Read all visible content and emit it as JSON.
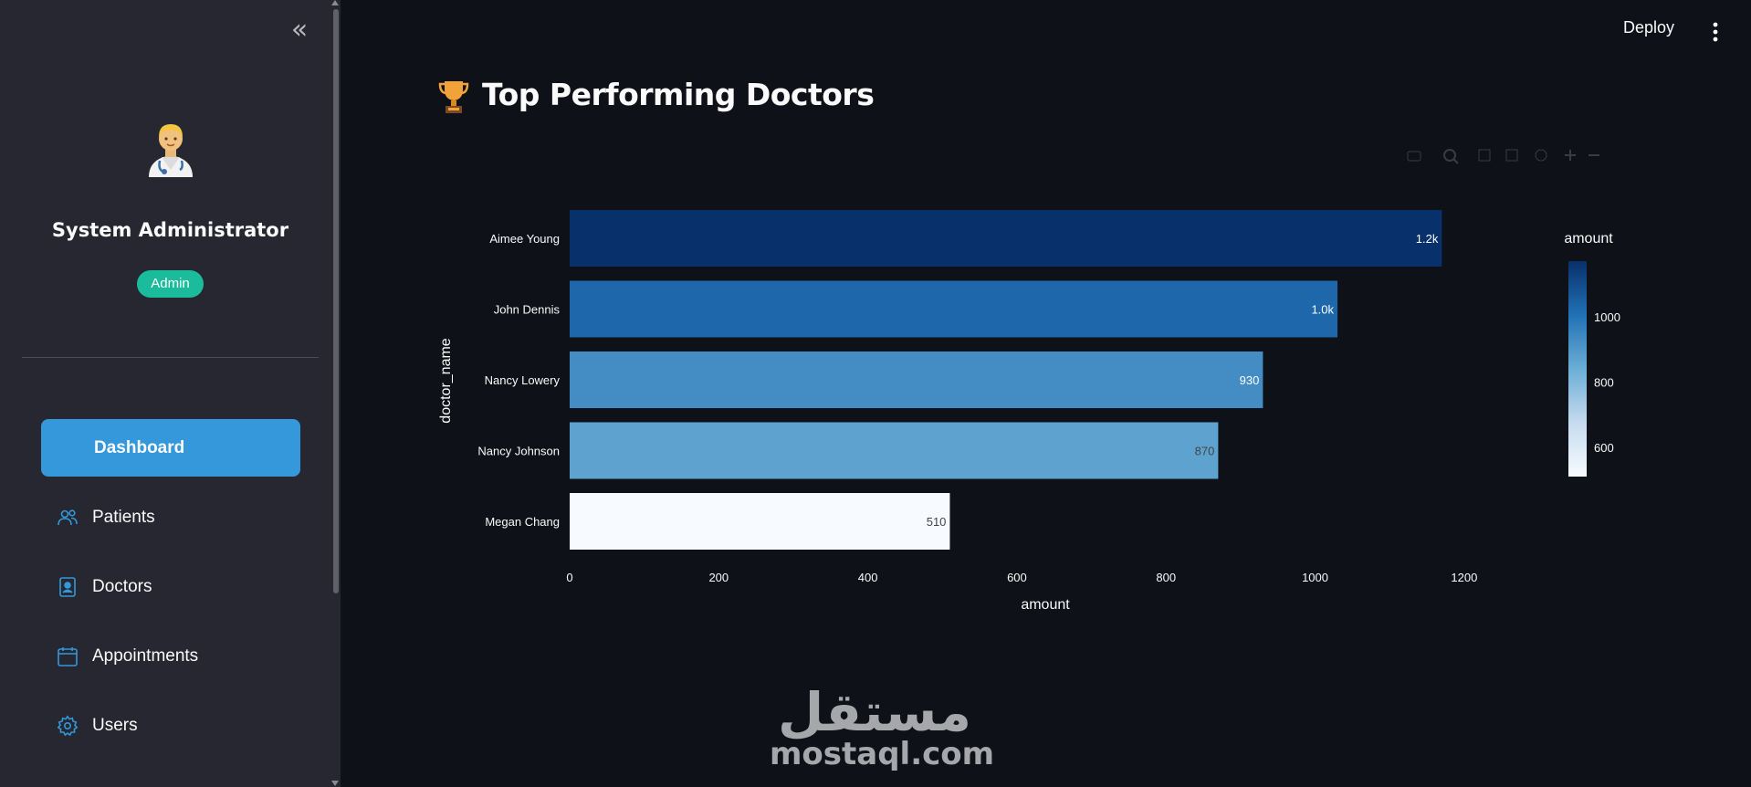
{
  "sidebar": {
    "collapse_icon": "double-chevron-left-icon",
    "avatar_icon": "doctor-avatar-icon",
    "user_name": "System Administrator",
    "role_badge": "Admin",
    "items": [
      {
        "label": "Dashboard",
        "icon": "none",
        "active": true
      },
      {
        "label": "Patients",
        "icon": "users-icon",
        "active": false
      },
      {
        "label": "Doctors",
        "icon": "badge-icon",
        "active": false
      },
      {
        "label": "Appointments",
        "icon": "calendar-icon",
        "active": false
      },
      {
        "label": "Users",
        "icon": "gear-icon",
        "active": false
      }
    ]
  },
  "header": {
    "deploy_label": "Deploy",
    "menu_icon": "kebab-menu-icon"
  },
  "main": {
    "title": "Top Performing Doctors",
    "title_icon": "trophy-icon"
  },
  "chart_data": {
    "type": "bar",
    "orientation": "horizontal",
    "categories": [
      "Aimee Young",
      "John Dennis",
      "Nancy Lowery",
      "Nancy Johnson",
      "Megan Chang"
    ],
    "values": [
      1170,
      1030,
      930,
      870,
      510
    ],
    "data_labels": [
      "1.2k",
      "1.0k",
      "930",
      "870",
      "510"
    ],
    "xlabel": "amount",
    "ylabel": "doctor_name",
    "xlim": [
      0,
      1270
    ],
    "xticks": [
      0,
      200,
      400,
      600,
      800,
      1000,
      1200
    ],
    "colorbar": {
      "title": "amount",
      "range": [
        510,
        1170
      ],
      "ticks": [
        600,
        800,
        1000
      ],
      "colorscale": "Blues"
    },
    "grid": false
  },
  "watermark": {
    "arabic": "مستقل",
    "latin": "mostaql.com"
  },
  "colors": {
    "accent": "#3498db",
    "badge": "#1abc9c",
    "background": "#0e1117",
    "sidebar": "#262730"
  }
}
